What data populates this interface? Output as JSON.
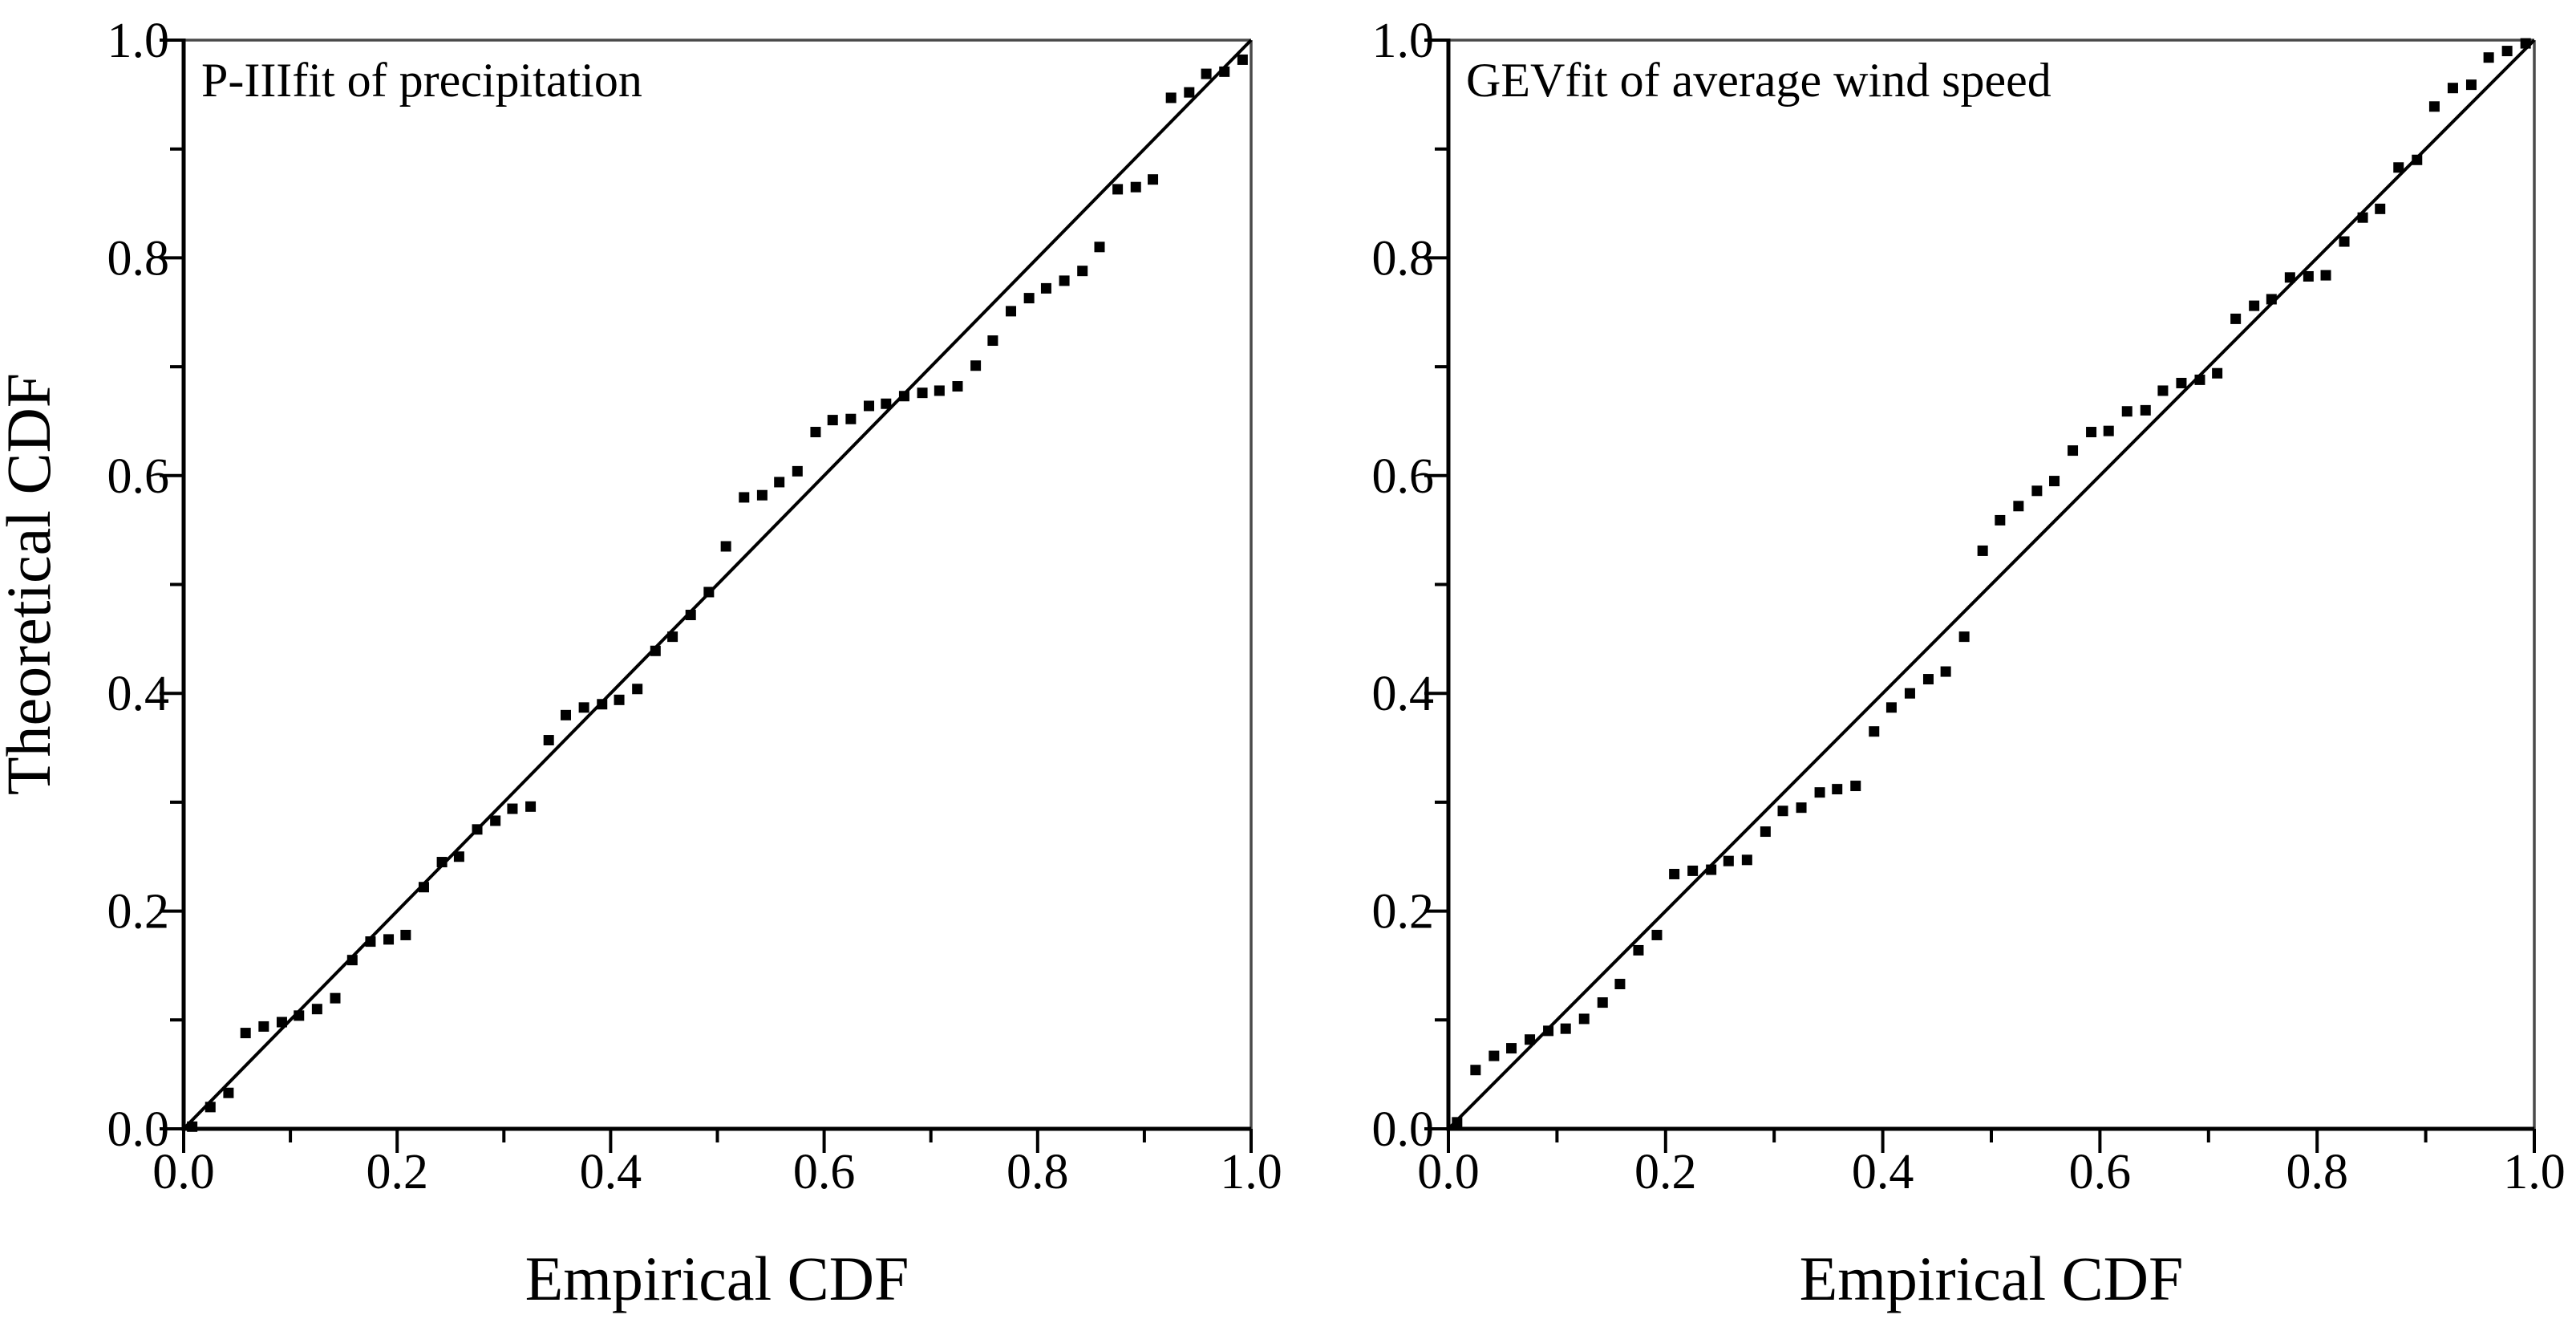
{
  "page": {
    "background": "#ffffff"
  },
  "figure": {
    "marker_color": "#000000",
    "marker_shape": "filled-square",
    "reference_line_color": "#000000",
    "spine_color_main": "#000000",
    "spine_color_secondary": "#4a4a4a",
    "text_color": "#000000"
  },
  "chart_data": [
    {
      "type": "scatter",
      "title": "P-IIIfit of precipitation",
      "xlabel": "Empirical CDF",
      "ylabel": "Theoretical CDF",
      "xlim": [
        0.0,
        1.0
      ],
      "ylim": [
        0.0,
        1.0
      ],
      "grid": false,
      "legend_position": "none",
      "major_tick_values": [
        0.0,
        0.2,
        0.4,
        0.6,
        0.8,
        1.0
      ],
      "major_tick_labels": [
        "0.0",
        "0.2",
        "0.4",
        "0.6",
        "0.8",
        "1.0"
      ],
      "minor_tick_values": [
        0.1,
        0.3,
        0.5,
        0.7,
        0.9
      ],
      "reference_line": {
        "type": "identity",
        "from": [
          0,
          0
        ],
        "to": [
          1,
          1
        ]
      },
      "points": [
        [
          0.008,
          0.002
        ],
        [
          0.025,
          0.02
        ],
        [
          0.042,
          0.033
        ],
        [
          0.058,
          0.088
        ],
        [
          0.075,
          0.094
        ],
        [
          0.092,
          0.098
        ],
        [
          0.108,
          0.104
        ],
        [
          0.125,
          0.11
        ],
        [
          0.142,
          0.12
        ],
        [
          0.158,
          0.155
        ],
        [
          0.175,
          0.172
        ],
        [
          0.192,
          0.174
        ],
        [
          0.208,
          0.178
        ],
        [
          0.225,
          0.222
        ],
        [
          0.242,
          0.245
        ],
        [
          0.258,
          0.25
        ],
        [
          0.275,
          0.275
        ],
        [
          0.292,
          0.283
        ],
        [
          0.308,
          0.294
        ],
        [
          0.325,
          0.296
        ],
        [
          0.342,
          0.357
        ],
        [
          0.358,
          0.38
        ],
        [
          0.375,
          0.387
        ],
        [
          0.392,
          0.39
        ],
        [
          0.408,
          0.394
        ],
        [
          0.425,
          0.404
        ],
        [
          0.442,
          0.439
        ],
        [
          0.458,
          0.452
        ],
        [
          0.475,
          0.472
        ],
        [
          0.492,
          0.493
        ],
        [
          0.508,
          0.535
        ],
        [
          0.525,
          0.58
        ],
        [
          0.542,
          0.582
        ],
        [
          0.558,
          0.594
        ],
        [
          0.575,
          0.604
        ],
        [
          0.592,
          0.64
        ],
        [
          0.608,
          0.651
        ],
        [
          0.625,
          0.652
        ],
        [
          0.642,
          0.664
        ],
        [
          0.658,
          0.666
        ],
        [
          0.675,
          0.673
        ],
        [
          0.692,
          0.676
        ],
        [
          0.708,
          0.678
        ],
        [
          0.725,
          0.682
        ],
        [
          0.742,
          0.701
        ],
        [
          0.758,
          0.724
        ],
        [
          0.775,
          0.751
        ],
        [
          0.792,
          0.763
        ],
        [
          0.808,
          0.772
        ],
        [
          0.825,
          0.779
        ],
        [
          0.842,
          0.788
        ],
        [
          0.858,
          0.81
        ],
        [
          0.875,
          0.863
        ],
        [
          0.892,
          0.865
        ],
        [
          0.908,
          0.872
        ],
        [
          0.925,
          0.947
        ],
        [
          0.942,
          0.952
        ],
        [
          0.958,
          0.969
        ],
        [
          0.975,
          0.971
        ],
        [
          0.992,
          0.982
        ]
      ]
    },
    {
      "type": "scatter",
      "title": "GEVfit of average wind speed",
      "xlabel": "Empirical CDF",
      "ylabel": "",
      "xlim": [
        0.0,
        1.0
      ],
      "ylim": [
        0.0,
        1.0
      ],
      "grid": false,
      "legend_position": "none",
      "major_tick_values": [
        0.0,
        0.2,
        0.4,
        0.6,
        0.8,
        1.0
      ],
      "major_tick_labels": [
        "0.0",
        "0.2",
        "0.4",
        "0.6",
        "0.8",
        "1.0"
      ],
      "minor_tick_values": [
        0.1,
        0.3,
        0.5,
        0.7,
        0.9
      ],
      "reference_line": {
        "type": "identity",
        "from": [
          0,
          0
        ],
        "to": [
          1,
          1
        ]
      },
      "points": [
        [
          0.008,
          0.006
        ],
        [
          0.025,
          0.054
        ],
        [
          0.042,
          0.067
        ],
        [
          0.058,
          0.074
        ],
        [
          0.075,
          0.082
        ],
        [
          0.092,
          0.09
        ],
        [
          0.108,
          0.092
        ],
        [
          0.125,
          0.101
        ],
        [
          0.142,
          0.116
        ],
        [
          0.158,
          0.133
        ],
        [
          0.175,
          0.164
        ],
        [
          0.192,
          0.178
        ],
        [
          0.208,
          0.234
        ],
        [
          0.225,
          0.237
        ],
        [
          0.242,
          0.238
        ],
        [
          0.258,
          0.246
        ],
        [
          0.275,
          0.247
        ],
        [
          0.292,
          0.273
        ],
        [
          0.308,
          0.292
        ],
        [
          0.325,
          0.295
        ],
        [
          0.342,
          0.309
        ],
        [
          0.358,
          0.312
        ],
        [
          0.375,
          0.315
        ],
        [
          0.392,
          0.365
        ],
        [
          0.408,
          0.387
        ],
        [
          0.425,
          0.4
        ],
        [
          0.442,
          0.413
        ],
        [
          0.458,
          0.42
        ],
        [
          0.475,
          0.452
        ],
        [
          0.492,
          0.531
        ],
        [
          0.508,
          0.559
        ],
        [
          0.525,
          0.572
        ],
        [
          0.542,
          0.586
        ],
        [
          0.558,
          0.595
        ],
        [
          0.575,
          0.623
        ],
        [
          0.592,
          0.64
        ],
        [
          0.608,
          0.641
        ],
        [
          0.625,
          0.659
        ],
        [
          0.642,
          0.66
        ],
        [
          0.658,
          0.678
        ],
        [
          0.675,
          0.685
        ],
        [
          0.692,
          0.688
        ],
        [
          0.708,
          0.694
        ],
        [
          0.725,
          0.744
        ],
        [
          0.742,
          0.756
        ],
        [
          0.758,
          0.762
        ],
        [
          0.775,
          0.782
        ],
        [
          0.792,
          0.783
        ],
        [
          0.808,
          0.784
        ],
        [
          0.825,
          0.815
        ],
        [
          0.842,
          0.837
        ],
        [
          0.858,
          0.845
        ],
        [
          0.875,
          0.883
        ],
        [
          0.892,
          0.89
        ],
        [
          0.908,
          0.939
        ],
        [
          0.925,
          0.956
        ],
        [
          0.942,
          0.959
        ],
        [
          0.958,
          0.984
        ],
        [
          0.975,
          0.99
        ],
        [
          0.992,
          0.997
        ]
      ]
    }
  ]
}
